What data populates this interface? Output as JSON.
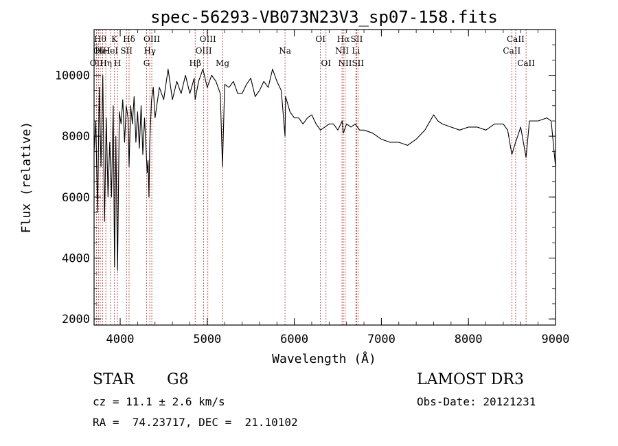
{
  "chart_data": {
    "type": "line",
    "title": "spec-56293-VB073N23V3_sp07-158.fits",
    "xlabel": "Wavelength (Å)",
    "ylabel": "Flux (relative)",
    "xlim": [
      3700,
      9000
    ],
    "ylim": [
      1800,
      11500
    ],
    "xticks": [
      4000,
      5000,
      6000,
      7000,
      8000,
      9000
    ],
    "yticks": [
      2000,
      4000,
      6000,
      8000,
      10000
    ],
    "grid": false,
    "series": [
      {
        "x": [
          3700,
          3720,
          3740,
          3760,
          3780,
          3800,
          3820,
          3840,
          3860,
          3880,
          3900,
          3920,
          3935,
          3950,
          3970,
          3990,
          4010,
          4030,
          4050,
          4070,
          4090,
          4102,
          4120,
          4140,
          4160,
          4180,
          4200,
          4220,
          4240,
          4260,
          4280,
          4300,
          4310,
          4320,
          4330,
          4340,
          4360,
          4380,
          4400,
          4450,
          4500,
          4550,
          4600,
          4650,
          4700,
          4750,
          4800,
          4850,
          4861,
          4900,
          4950,
          5000,
          5050,
          5100,
          5150,
          5175,
          5200,
          5250,
          5300,
          5350,
          5400,
          5450,
          5500,
          5550,
          5600,
          5650,
          5700,
          5750,
          5800,
          5850,
          5893,
          5900,
          5950,
          6000,
          6050,
          6100,
          6150,
          6200,
          6250,
          6300,
          6350,
          6400,
          6450,
          6500,
          6550,
          6563,
          6600,
          6650,
          6700,
          6750,
          6800,
          6900,
          7000,
          7100,
          7200,
          7300,
          7400,
          7500,
          7600,
          7650,
          7700,
          7800,
          7900,
          8000,
          8100,
          8200,
          8300,
          8400,
          8450,
          8498,
          8542,
          8600,
          8662,
          8700,
          8800,
          8900,
          8950,
          9000
        ],
        "y": [
          7500,
          8500,
          5500,
          9600,
          7000,
          10000,
          5200,
          8600,
          6000,
          7800,
          6000,
          9000,
          3700,
          8000,
          3600,
          8800,
          8400,
          9200,
          7800,
          9000,
          8600,
          7000,
          9000,
          8400,
          9300,
          7800,
          8800,
          7600,
          9000,
          7400,
          8600,
          7400,
          6800,
          7200,
          6000,
          7800,
          9200,
          9600,
          8600,
          9600,
          9200,
          10200,
          9200,
          9800,
          9400,
          10000,
          9400,
          9900,
          9200,
          9800,
          10200,
          9600,
          10000,
          9800,
          9400,
          7000,
          9700,
          9600,
          9800,
          9400,
          9400,
          9700,
          9900,
          9300,
          9500,
          9800,
          9600,
          10200,
          9800,
          9500,
          8000,
          9300,
          8800,
          8600,
          8600,
          8400,
          8600,
          8700,
          8400,
          8200,
          8300,
          8400,
          8400,
          8200,
          8500,
          8100,
          8400,
          8300,
          8400,
          8200,
          8200,
          8100,
          7900,
          7800,
          7800,
          7700,
          7900,
          8200,
          8700,
          8500,
          8400,
          8300,
          8200,
          8300,
          8300,
          8200,
          8400,
          8400,
          8200,
          7400,
          7800,
          8300,
          7300,
          8500,
          8500,
          8600,
          8500,
          7000
        ]
      }
    ],
    "lines": [
      {
        "w": 3727,
        "label": "OII",
        "row": 3
      },
      {
        "w": 3750,
        "label": "OI",
        "row": 2
      },
      {
        "w": 3771,
        "label": "Hθ",
        "row": 1
      },
      {
        "w": 3798,
        "label": "HeI",
        "row": 2
      },
      {
        "w": 3835,
        "label": "Hη",
        "row": 3
      },
      {
        "w": 3889,
        "label": "HeI",
        "row": 2
      },
      {
        "w": 3934,
        "label": "K",
        "row": 1
      },
      {
        "w": 3969,
        "label": "H",
        "row": 3
      },
      {
        "w": 4072,
        "label": "SII",
        "row": 2
      },
      {
        "w": 4102,
        "label": "Hδ",
        "row": 1
      },
      {
        "w": 4304,
        "label": "G",
        "row": 3
      },
      {
        "w": 4340,
        "label": "Hγ",
        "row": 2
      },
      {
        "w": 4363,
        "label": "OIII",
        "row": 1
      },
      {
        "w": 4861,
        "label": "Hβ",
        "row": 3
      },
      {
        "w": 4959,
        "label": "OIII",
        "row": 2
      },
      {
        "w": 5007,
        "label": "OIII",
        "row": 1
      },
      {
        "w": 5175,
        "label": "Mg",
        "row": 3
      },
      {
        "w": 5893,
        "label": "Na",
        "row": 2
      },
      {
        "w": 6300,
        "label": "OI",
        "row": 1
      },
      {
        "w": 6364,
        "label": "OI",
        "row": 3
      },
      {
        "w": 6548,
        "label": "NII",
        "row": 2
      },
      {
        "w": 6563,
        "label": "Hα",
        "row": 1
      },
      {
        "w": 6583,
        "label": "NII",
        "row": 3
      },
      {
        "w": 6707,
        "label": "Li",
        "row": 2
      },
      {
        "w": 6717,
        "label": "SII",
        "row": 1
      },
      {
        "w": 6731,
        "label": "SII",
        "row": 3
      },
      {
        "w": 8498,
        "label": "CaII",
        "row": 2
      },
      {
        "w": 8542,
        "label": "CaII",
        "row": 1
      },
      {
        "w": 8662,
        "label": "CaII",
        "row": 3
      }
    ]
  },
  "info": {
    "class_label": "STAR",
    "subclass": "G8",
    "survey": "LAMOST DR3",
    "redshift": "cz = 11.1 ± 2.6 km/s",
    "obs_date": "Obs-Date: 20121231",
    "coords": "RA =  74.23717, DEC =  21.10102"
  }
}
